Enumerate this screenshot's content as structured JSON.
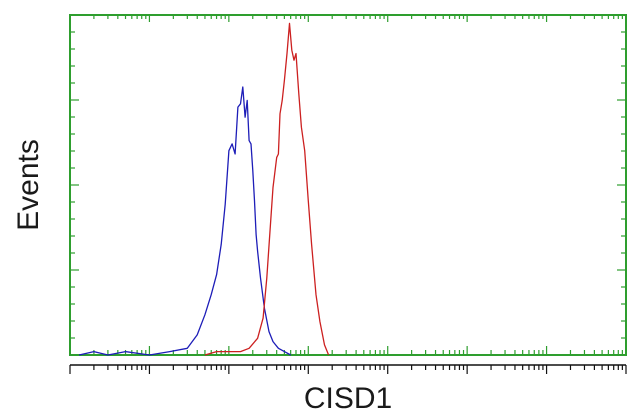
{
  "chart_data": {
    "type": "line",
    "title": "",
    "xlabel": "CISD1",
    "ylabel": "Events",
    "x_scale": "log",
    "xlim": [
      1,
      10000000
    ],
    "ylim": [
      0,
      100
    ],
    "grid": false,
    "legend": "none",
    "colors": {
      "axes": "#2e9e2e",
      "ticks": "#2e9e2e",
      "bottom_ticks": "#111111"
    },
    "series": [
      {
        "color": "#1d1db8",
        "x": [
          1.3,
          2,
          3,
          5,
          10,
          18,
          30,
          40,
          50,
          60,
          70,
          80,
          90,
          100,
          110,
          120,
          130,
          140,
          150,
          160,
          170,
          180,
          190,
          200,
          210,
          220,
          230,
          250,
          280,
          320,
          360,
          420,
          500,
          600
        ],
        "y": [
          0,
          1,
          0,
          1,
          0,
          1,
          2,
          6,
          12,
          18,
          24,
          33,
          45,
          61,
          63,
          60,
          74,
          75,
          80,
          71,
          76,
          64,
          63,
          55,
          46,
          36,
          31,
          23,
          14,
          7,
          4,
          2,
          1,
          0
        ]
      },
      {
        "color": "#cc2020",
        "x": [
          50,
          70,
          100,
          140,
          180,
          230,
          270,
          300,
          330,
          360,
          400,
          420,
          440,
          470,
          500,
          540,
          580,
          620,
          660,
          700,
          760,
          820,
          900,
          1000,
          1100,
          1250,
          1400,
          1600,
          1800
        ],
        "y": [
          0,
          1,
          1,
          1,
          2,
          5,
          11,
          23,
          37,
          50,
          59,
          60,
          72,
          76,
          82,
          90,
          99,
          91,
          88,
          90,
          78,
          68,
          61,
          46,
          33,
          18,
          10,
          3,
          0
        ]
      }
    ]
  }
}
